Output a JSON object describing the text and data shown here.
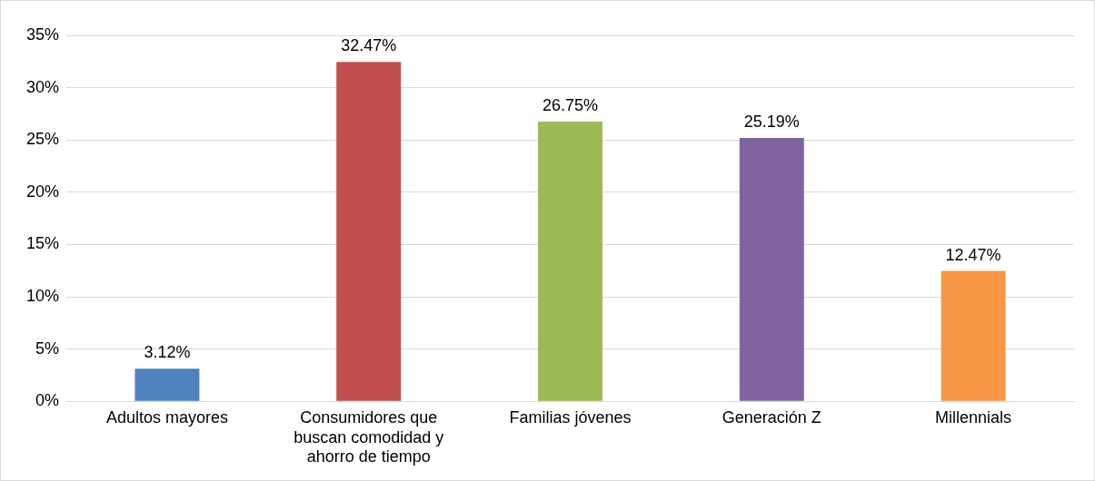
{
  "chart_data": {
    "type": "bar",
    "categories": [
      "Adultos mayores",
      "Consumidores que buscan comodidad y ahorro de tiempo",
      "Familias jóvenes",
      "Generación Z",
      "Millennials"
    ],
    "values": [
      3.12,
      32.47,
      26.75,
      25.19,
      12.47
    ],
    "colors": [
      "#4f81bd",
      "#c0504d",
      "#9bbb59",
      "#8064a2",
      "#f79646"
    ],
    "value_labels": [
      "3.12%",
      "32.47%",
      "26.75%",
      "25.19%",
      "12.47%"
    ],
    "ylim": [
      0,
      35
    ],
    "yticks": [
      {
        "value": 0,
        "label": "0%"
      },
      {
        "value": 5,
        "label": "5%"
      },
      {
        "value": 10,
        "label": "10%"
      },
      {
        "value": 15,
        "label": "15%"
      },
      {
        "value": 20,
        "label": "20%"
      },
      {
        "value": 25,
        "label": "25%"
      },
      {
        "value": 30,
        "label": "30%"
      },
      {
        "value": 35,
        "label": "35%"
      }
    ],
    "grid": "y",
    "legend": false
  }
}
